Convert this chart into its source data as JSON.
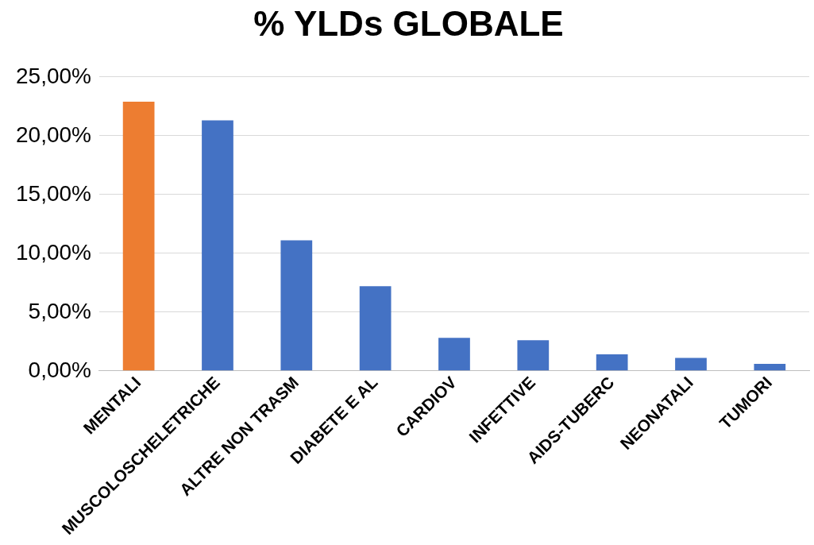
{
  "chart_data": {
    "type": "bar",
    "title": "% YLDs GLOBALE",
    "categories": [
      "MENTALI",
      "MUSCOLOSCHELETRICHE",
      "ALTRE NON TRASM",
      "DIABETE E AL",
      "CARDIOV",
      "INFETTIVE",
      "AIDS-TUBERC",
      "NEONATALI",
      "TUMORI"
    ],
    "values": [
      22.9,
      21.3,
      11.1,
      7.2,
      2.8,
      2.6,
      1.4,
      1.1,
      0.6
    ],
    "colors": [
      "#ed7d31",
      "#4472c4",
      "#4472c4",
      "#4472c4",
      "#4472c4",
      "#4472c4",
      "#4472c4",
      "#4472c4",
      "#4472c4"
    ],
    "ylim": [
      0,
      25
    ],
    "yticks": [
      {
        "value": 0,
        "label": "0,00%"
      },
      {
        "value": 5,
        "label": "5,00%"
      },
      {
        "value": 10,
        "label": "10,00%"
      },
      {
        "value": 15,
        "label": "15,00%"
      },
      {
        "value": 20,
        "label": "20,00%"
      },
      {
        "value": 25,
        "label": "25,00%"
      }
    ],
    "grid": "y",
    "legend": false
  }
}
